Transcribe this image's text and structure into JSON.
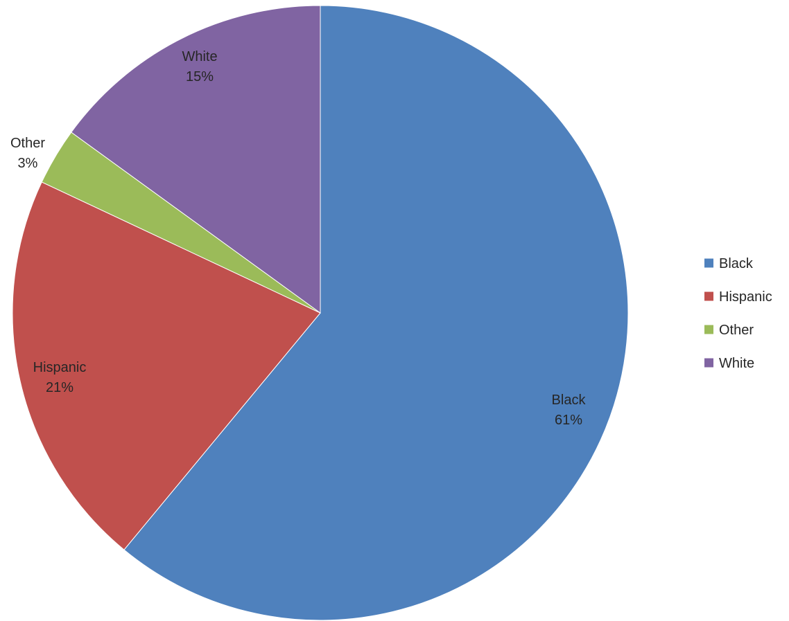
{
  "chart_data": {
    "type": "pie",
    "title": "",
    "categories": [
      "Black",
      "Hispanic",
      "Other",
      "White"
    ],
    "values": [
      61,
      21,
      3,
      15
    ],
    "value_labels": [
      "61%",
      "21%",
      "3%",
      "15%"
    ],
    "colors": [
      "#4f81bd",
      "#c0504d",
      "#9bbb59",
      "#8064a2"
    ],
    "start_angle_degrees": 0,
    "direction": "clockwise",
    "legend": {
      "position": "right",
      "entries": [
        "Black",
        "Hispanic",
        "Other",
        "White"
      ]
    }
  }
}
